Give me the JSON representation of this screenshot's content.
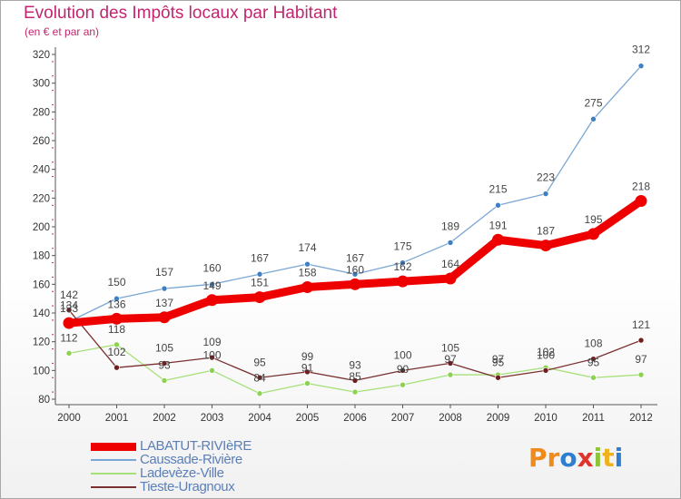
{
  "title": "Evolution des Impôts locaux par Habitant",
  "subtitle": "(en € et par an)",
  "logo": {
    "text": "Proxiti",
    "colors": [
      "#f08a1c",
      "#f08a1c",
      "#2e7fd0",
      "#e0342a",
      "#8cc43b",
      "#f0b21c",
      "#2e7fd0"
    ]
  },
  "chart_data": {
    "type": "line",
    "title": "Evolution des Impôts locaux par Habitant",
    "subtitle": "(en € et par an)",
    "xlabel": "",
    "ylabel": "",
    "x": [
      "2000",
      "2001",
      "2002",
      "2003",
      "2004",
      "2005",
      "2006",
      "2007",
      "2008",
      "2009",
      "2010",
      "2011",
      "2012"
    ],
    "ylim": [
      80,
      320
    ],
    "yticks": [
      80,
      100,
      120,
      140,
      160,
      180,
      200,
      220,
      240,
      260,
      280,
      300,
      320
    ],
    "grid": false,
    "legend_position": "bottom-left",
    "series": [
      {
        "name": "LABATUT-RIVIèRE",
        "color": "#ee0000",
        "marker": "#ee0000",
        "width": 9,
        "values": [
          133,
          136,
          137,
          149,
          151,
          158,
          160,
          162,
          164,
          191,
          187,
          195,
          218
        ]
      },
      {
        "name": "Caussade-Rivière",
        "color": "#7aa7d4",
        "marker": "#3d7fc2",
        "width": 1.3,
        "values": [
          134,
          150,
          157,
          160,
          167,
          174,
          167,
          175,
          189,
          215,
          223,
          275,
          312
        ]
      },
      {
        "name": "Ladevèze-Ville",
        "color": "#a6e07a",
        "marker": "#8cd250",
        "width": 1.3,
        "values": [
          112,
          118,
          93,
          100,
          84,
          91,
          85,
          90,
          97,
          97,
          102,
          95,
          97
        ]
      },
      {
        "name": "Tieste-Uragnoux",
        "color": "#7a3030",
        "marker": "#6e1e1e",
        "width": 1.3,
        "values": [
          142,
          102,
          105,
          109,
          95,
          99,
          93,
          100,
          105,
          95,
          100,
          108,
          121
        ]
      }
    ]
  }
}
